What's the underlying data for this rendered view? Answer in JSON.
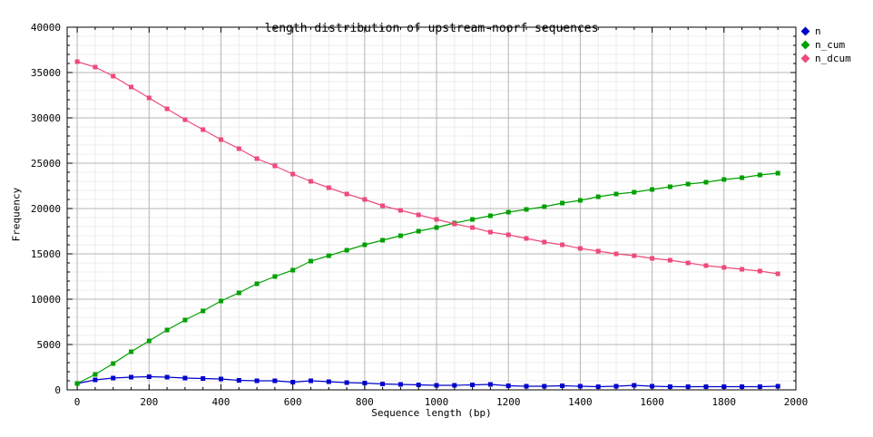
{
  "chart_data": {
    "type": "line",
    "title": "length distribution of upstream-noorf sequences",
    "xlabel": "Sequence length (bp)",
    "ylabel": "Frequency",
    "xlim": [
      -28,
      2000
    ],
    "ylim": [
      0,
      40000
    ],
    "x_ticks": [
      0,
      200,
      400,
      600,
      800,
      1000,
      1200,
      1400,
      1600,
      1800,
      2000
    ],
    "y_ticks": [
      0,
      5000,
      10000,
      15000,
      20000,
      25000,
      30000,
      35000,
      40000
    ],
    "x_minor_step": 50,
    "y_minor_step": 1000,
    "grid": "major+minor",
    "legend_position": "outside-top-right",
    "x": [
      0,
      50,
      100,
      150,
      200,
      250,
      300,
      350,
      400,
      450,
      500,
      550,
      600,
      650,
      700,
      750,
      800,
      850,
      900,
      950,
      1000,
      1050,
      1100,
      1150,
      1200,
      1250,
      1300,
      1350,
      1400,
      1450,
      1500,
      1550,
      1600,
      1650,
      1700,
      1750,
      1800,
      1850,
      1900,
      1950
    ],
    "series": [
      {
        "name": "n",
        "color": "#0000cd",
        "values": [
          700,
          1100,
          1300,
          1400,
          1450,
          1400,
          1300,
          1250,
          1200,
          1050,
          1000,
          1000,
          850,
          1000,
          900,
          800,
          750,
          650,
          600,
          550,
          500,
          500,
          550,
          600,
          450,
          400,
          400,
          450,
          400,
          350,
          400,
          500,
          400,
          350,
          350,
          350,
          350,
          350,
          350,
          400
        ]
      },
      {
        "name": "n_cum",
        "color": "#00a000",
        "values": [
          700,
          1700,
          2900,
          4200,
          5400,
          6600,
          7700,
          8700,
          9800,
          10700,
          11700,
          12500,
          13200,
          14200,
          14800,
          15400,
          16000,
          16500,
          17000,
          17500,
          17900,
          18400,
          18800,
          19200,
          19600,
          19900,
          20200,
          20600,
          20900,
          21300,
          21600,
          21800,
          22100,
          22400,
          22700,
          22900,
          23200,
          23400,
          23700,
          23900
        ]
      },
      {
        "name": "n_dcum",
        "color": "#ee4a7a",
        "values": [
          36200,
          35600,
          34600,
          33400,
          32200,
          31000,
          29800,
          28700,
          27600,
          26600,
          25500,
          24700,
          23800,
          23000,
          22300,
          21600,
          21000,
          20300,
          19800,
          19300,
          18800,
          18300,
          17900,
          17400,
          17100,
          16700,
          16300,
          16000,
          15600,
          15300,
          15000,
          14800,
          14500,
          14300,
          14000,
          13700,
          13500,
          13300,
          13100,
          12800
        ]
      }
    ],
    "colors": {
      "background": "#ffffff",
      "border": "#000000",
      "grid_major": "#b4b4b4",
      "grid_minor": "#ececec",
      "text": "#000000"
    }
  }
}
